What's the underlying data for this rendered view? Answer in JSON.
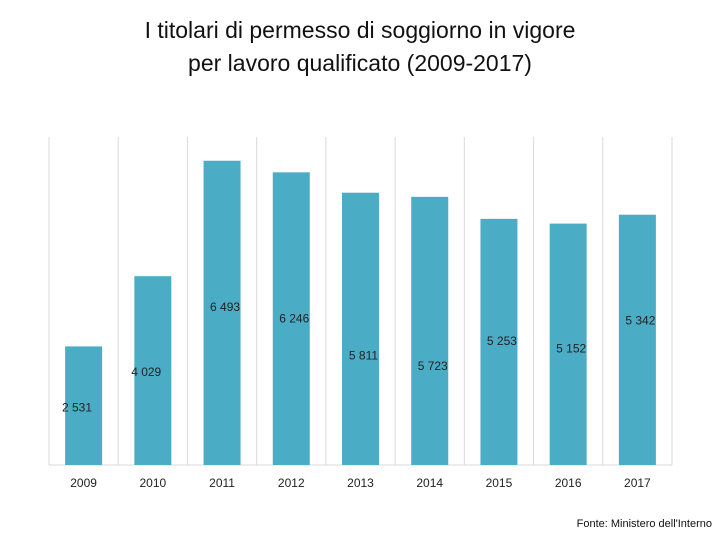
{
  "title_line1": "I titolari di permesso di soggiorno in vigore",
  "title_line2": "per lavoro qualificato (2009-2017)",
  "source": "Fonte: Ministero dell'Interno",
  "colors": {
    "bar": "#4bacc6",
    "grid": "#d9d9d9"
  },
  "chart_data": {
    "type": "bar",
    "title": "I titolari di permesso di soggiorno in vigore per lavoro qualificato (2009-2017)",
    "xlabel": "",
    "ylabel": "",
    "categories": [
      "2009",
      "2010",
      "2011",
      "2012",
      "2013",
      "2014",
      "2015",
      "2016",
      "2017"
    ],
    "values": [
      2531,
      4029,
      6493,
      6246,
      5811,
      5723,
      5253,
      5152,
      5342
    ],
    "value_labels": [
      "2 531",
      "4 029",
      "6 493",
      "6 246",
      "5 811",
      "5 723",
      "5 253",
      "5 152",
      "5 342"
    ],
    "ylim": [
      0,
      7000
    ],
    "grid": "vertical"
  }
}
